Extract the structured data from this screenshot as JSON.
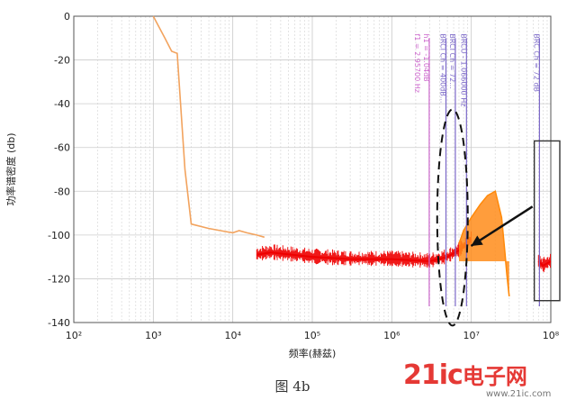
{
  "chart_data": {
    "type": "line",
    "xscale": "log",
    "xlim": [
      100,
      100000000
    ],
    "ylim": [
      -140,
      0
    ],
    "ylabel": "功率谱密度 (db)",
    "xlabel": "频率(赫兹)",
    "xtick_labels": [
      "10²",
      "10³",
      "10⁴",
      "10⁵",
      "10⁶",
      "10⁷",
      "10⁸"
    ],
    "yticks": [
      0,
      -20,
      -40,
      -60,
      -80,
      -100,
      -120,
      -140
    ],
    "grid": true,
    "series": [
      {
        "color": "#f2a35e",
        "x": [
          1000,
          1400,
          1700,
          2000,
          2500,
          3000,
          5000,
          7000,
          10000,
          12000,
          15000,
          20000,
          25000
        ],
        "y": [
          0,
          -10,
          -16,
          -17,
          -70,
          -95,
          -97,
          -98,
          -99,
          -98,
          -99,
          -100,
          -101
        ]
      },
      {
        "color": "#ee0000",
        "x": [
          20000,
          30000,
          100000,
          300000,
          1000000,
          3000000,
          5000000,
          7000000,
          10000000
        ],
        "y": [
          -109,
          -108,
          -110,
          -111,
          -111,
          -112,
          -110,
          -107,
          -102
        ]
      },
      {
        "color": "#ff8800",
        "x": [
          7000000,
          8000000,
          10000000,
          13000000,
          16000000,
          20000000,
          24000000,
          26000000,
          28000000,
          30000000
        ],
        "y": [
          -104,
          -98,
          -92,
          -86,
          -82,
          -80,
          -92,
          -105,
          -118,
          -128
        ]
      },
      {
        "color": "#ee0000",
        "x": [
          70000000,
          80000000,
          100000000
        ],
        "y": [
          -112,
          -114,
          -112
        ]
      }
    ],
    "markers": [
      {
        "x": 2957000,
        "color": "#cc66cc",
        "label": "h1 = -1.04dB"
      },
      {
        "x": 2957000,
        "color": "#cc66cc",
        "label": "f1 = 2.95700 Hz"
      },
      {
        "x": 4800000,
        "color": "#7b68c8",
        "label": "BRCI Ch = 400dB..."
      },
      {
        "x": 6300000,
        "color": "#7b68c8",
        "label": "BRCI Ch = 72..."
      },
      {
        "x": 8700000,
        "color": "#7b68c8",
        "label": "BRCU - 1.066000 Hz"
      },
      {
        "x": 72000000,
        "color": "#7b68c8",
        "label": "BRC Ch = 72 dB"
      }
    ],
    "annotations": [
      "dashed-ellipse",
      "arrow",
      "highlight-box"
    ]
  },
  "caption": "图 4b",
  "watermark": {
    "main": "21ic",
    "cn": "电子网",
    "sub": "www.21ic.com"
  }
}
